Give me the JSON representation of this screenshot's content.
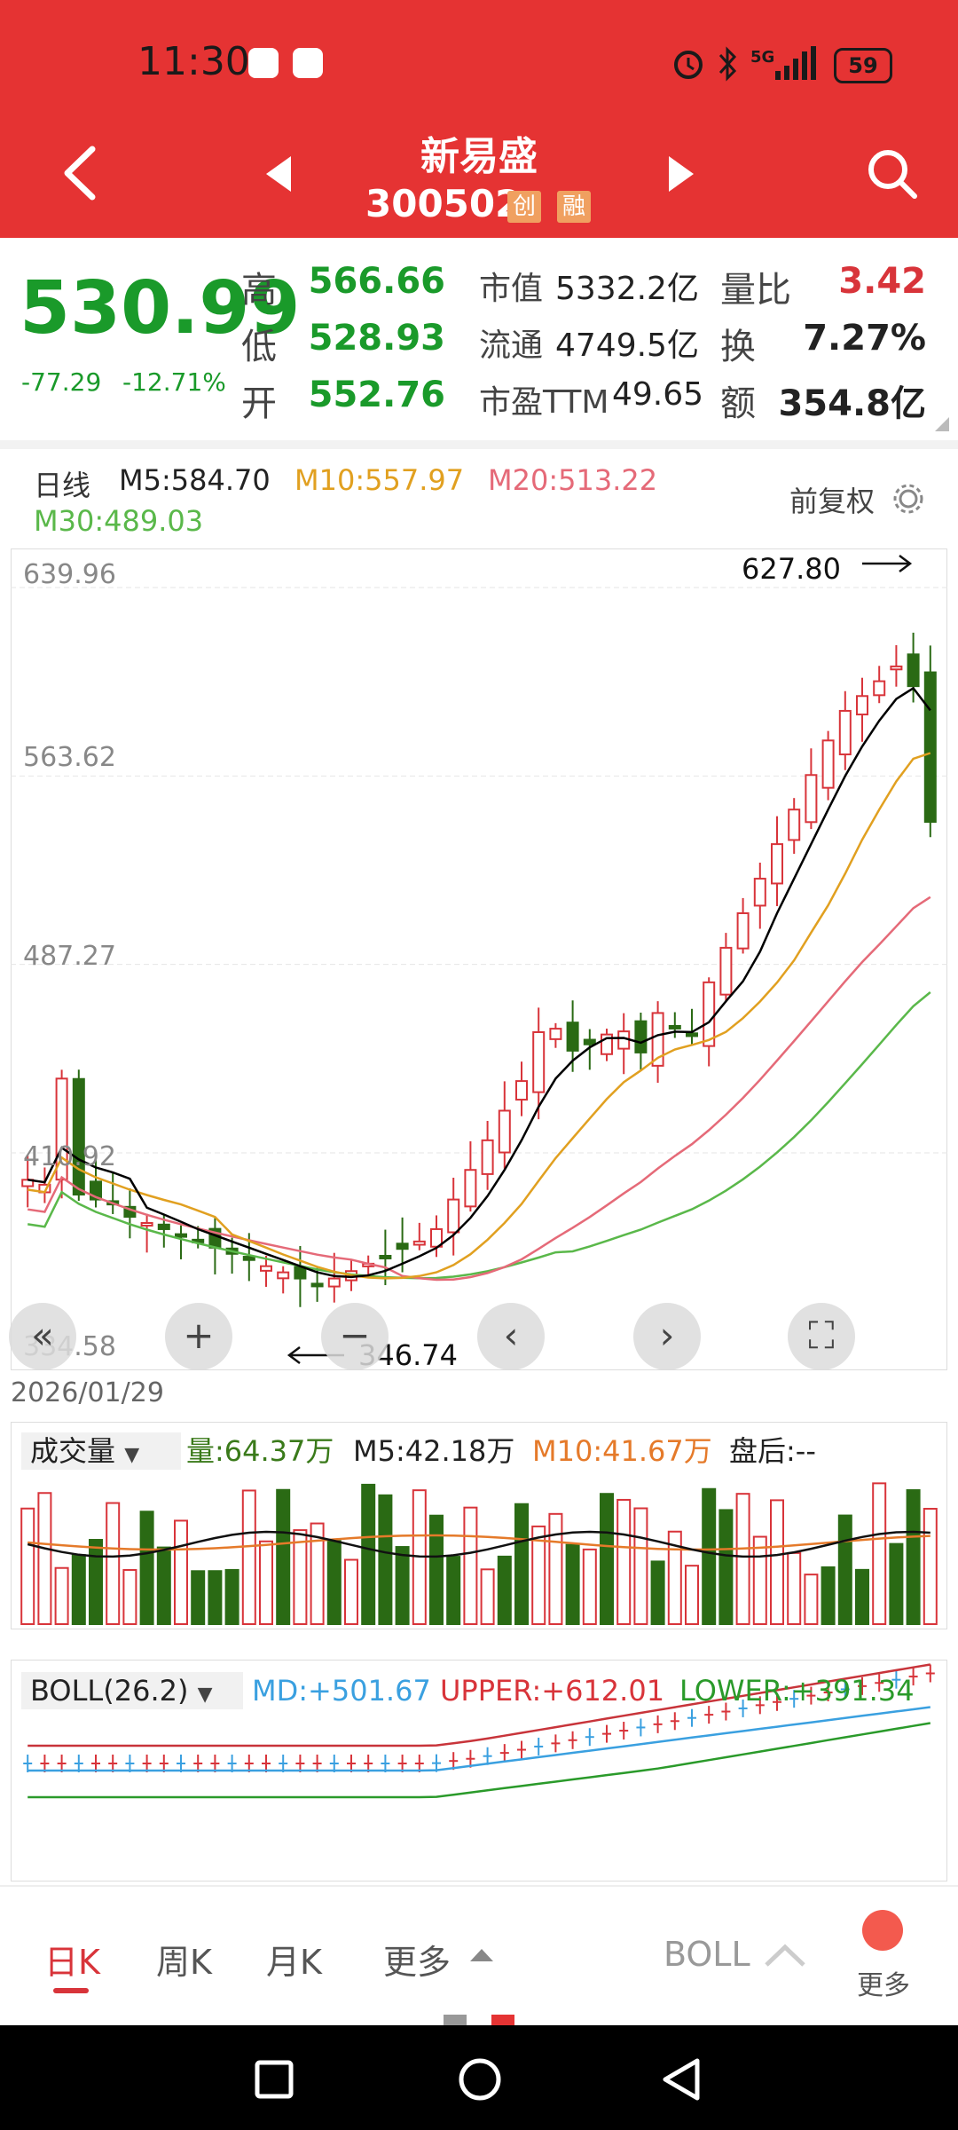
{
  "status_bar": {
    "time": "11:30",
    "battery": "59",
    "network": "5G"
  },
  "header": {
    "stock_name": "新易盛",
    "stock_code": "300502",
    "tags": [
      "创",
      "融"
    ]
  },
  "quote": {
    "price": "530.99",
    "change": "-77.29",
    "change_pct": "-12.71%",
    "high_label": "高",
    "high": "566.66",
    "low_label": "低",
    "low": "528.93",
    "open_label": "开",
    "open": "552.76",
    "mcap_label": "市值",
    "mcap": "5332.2亿",
    "float_label": "流通",
    "float": "4749.5亿",
    "pe_label": "市盈TTM",
    "pe": "49.65",
    "vr_label": "量比",
    "vr": "3.42",
    "turnover_label": "换",
    "turnover": "7.27%",
    "amount_label": "额",
    "amount": "354.8亿"
  },
  "ma_legend": {
    "period": "日线",
    "m5": "M5:584.70",
    "m10": "M10:557.97",
    "m20": "M20:513.22",
    "m30": "M30:489.03",
    "adjust": "前复权"
  },
  "kchart": {
    "y_labels": [
      "639.96",
      "563.62",
      "487.27",
      "410.92",
      "334.58"
    ],
    "max_label": "627.80",
    "min_label": "346.74",
    "date": "2026/01/29"
  },
  "volume": {
    "title": "成交量",
    "vol": "量:64.37万",
    "m5": "M5:42.18万",
    "m10": "M10:41.67万",
    "after": "盘后:--"
  },
  "boll": {
    "title": "BOLL(26.2)",
    "md": "MD:+501.67",
    "upper": "UPPER:+612.01",
    "lower": "LOWER:+391.34"
  },
  "tabs": {
    "day": "日K",
    "week": "周K",
    "month": "月K",
    "more": "更多",
    "indicator": "BOLL",
    "more2": "更多"
  },
  "colors": {
    "header": "#e53333",
    "up": "#d8343a",
    "down": "#2a6a14",
    "m5": "#000000",
    "m10": "#e1a020",
    "m20": "#e56a78",
    "m30": "#5ab84a",
    "md": "#3aa0e0",
    "lower": "#2a9a2a"
  }
}
